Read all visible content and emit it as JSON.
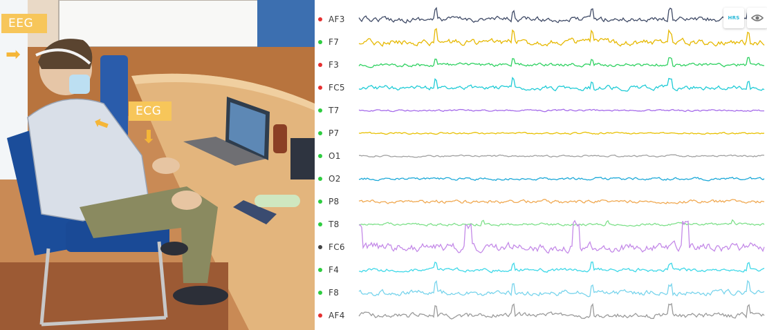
{
  "photo": {
    "eeg_tag": "EEG",
    "ecg_tag": "ECG"
  },
  "eeg_viewer": {
    "hrs_button": "HRS",
    "eye_icon": "eye-icon",
    "channels": [
      {
        "label": "AF3",
        "dot": "#e53030",
        "color": "#3f4a66"
      },
      {
        "label": "F7",
        "dot": "#2ecc40",
        "color": "#e6b800"
      },
      {
        "label": "F3",
        "dot": "#e53030",
        "color": "#2ed160"
      },
      {
        "label": "FC5",
        "dot": "#e53030",
        "color": "#1ecbd6"
      },
      {
        "label": "T7",
        "dot": "#2ecc40",
        "color": "#a56bea"
      },
      {
        "label": "P7",
        "dot": "#2ecc40",
        "color": "#e8c000"
      },
      {
        "label": "O1",
        "dot": "#2ecc40",
        "color": "#a0a0a0"
      },
      {
        "label": "O2",
        "dot": "#2ecc40",
        "color": "#1aa8d8"
      },
      {
        "label": "P8",
        "dot": "#2ecc40",
        "color": "#f0a850"
      },
      {
        "label": "T8",
        "dot": "#2ecc40",
        "color": "#7ee08a"
      },
      {
        "label": "FC6",
        "dot": "#444444",
        "color": "#c48ae8"
      },
      {
        "label": "F4",
        "dot": "#2ecc40",
        "color": "#3dd8e8"
      },
      {
        "label": "F8",
        "dot": "#2ecc40",
        "color": "#78d4ec"
      },
      {
        "label": "AF4",
        "dot": "#e53030",
        "color": "#9a9a9a"
      }
    ]
  }
}
